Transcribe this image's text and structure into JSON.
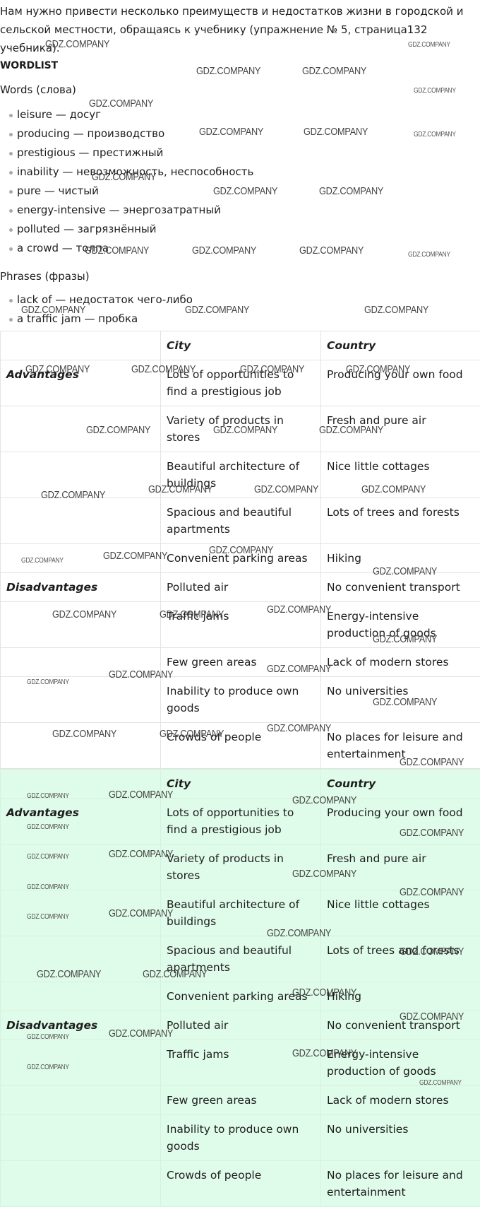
{
  "intro": "Нам нужно привести несколько преимуществ и недостатков жизни в городской и сельской местности, обращаясь к учебнику (упражнение № 5, страница132 учебника).",
  "wordlist": {
    "label": "WORDLIST",
    "words_heading": "Words (слова)",
    "words": [
      "leisure — досуг",
      "producing — производство",
      "prestigious — престижный",
      "inability — невозможность, неспособность",
      "pure — чистый",
      "energy-intensive — энергозатратный",
      "polluted — загрязнённый",
      "a crowd — толпа"
    ],
    "phrases_heading": "Phrases (фразы)",
    "phrases": [
      "lack of — недостаток чего-либо",
      "a traffic jam — пробка"
    ]
  },
  "table": {
    "col_city": "City",
    "col_country": "Country",
    "rows": [
      {
        "label": "Advantages",
        "city": "Lots of opportunities to find a prestigious job",
        "country": "Producing your own food"
      },
      {
        "label": "",
        "city": "Variety of products in stores",
        "country": "Fresh and pure air"
      },
      {
        "label": "",
        "city": "Beautiful architecture of buildings",
        "country": "Nice little cottages"
      },
      {
        "label": "",
        "city": "Spacious and beautiful apartments",
        "country": "Lots of trees and forests"
      },
      {
        "label": "",
        "city": "Convenient parking areas",
        "country": "Hiking"
      },
      {
        "label": "Disadvantages",
        "city": "Polluted air",
        "country": "No convenient transport"
      },
      {
        "label": "",
        "city": "Traffic jams",
        "country": "Energy-intensive production of goods"
      },
      {
        "label": "",
        "city": "Few green areas",
        "country": "Lack of modern stores"
      },
      {
        "label": "",
        "city": "Inability to produce own goods",
        "country": "No universities"
      },
      {
        "label": "",
        "city": "Crowds of people",
        "country": "No places for leisure and entertainment"
      }
    ]
  },
  "watermark": "GDZ.COMPANY"
}
